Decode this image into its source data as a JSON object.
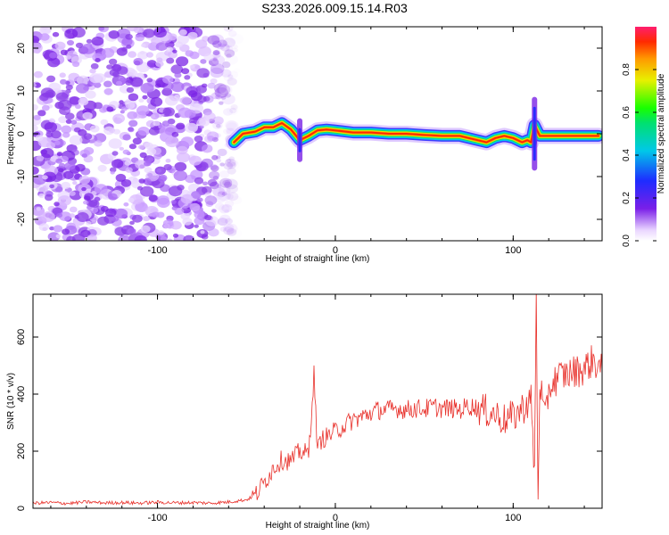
{
  "title": "S233.2026.009.15.14.R03",
  "chart_data": [
    {
      "type": "heatmap",
      "xlabel": "Height of straight line (km)",
      "ylabel": "Frequency (Hz)",
      "xlim": [
        -170,
        150
      ],
      "ylim": [
        -25,
        25
      ],
      "xticks": [
        -100,
        0,
        100
      ],
      "yticks": [
        -20,
        -10,
        0,
        10,
        20
      ],
      "noise_region_x": [
        -170,
        -55
      ],
      "signal_ridge": {
        "x": [
          -57,
          -52,
          -45,
          -40,
          -35,
          -30,
          -25,
          -20,
          -15,
          -10,
          -5,
          0,
          10,
          20,
          30,
          40,
          50,
          60,
          70,
          75,
          80,
          85,
          90,
          95,
          100,
          105,
          108,
          110,
          112,
          115,
          120,
          130,
          140,
          148
        ],
        "freq": [
          -2,
          0,
          0.5,
          1.5,
          1.5,
          2.5,
          1,
          -1.5,
          -0.5,
          0.8,
          1,
          0.8,
          0.3,
          0.3,
          0,
          0,
          -0.3,
          -0.5,
          -0.5,
          -1,
          -1.5,
          -2,
          -1,
          -0.5,
          -1,
          -2,
          -1.5,
          -2,
          2,
          -0.5,
          -0.5,
          -0.5,
          -0.5,
          -0.5
        ]
      },
      "colorbar": {
        "label": "Normalized spectral amplitude",
        "ticks": [
          "0.0",
          "0.2",
          "0.4",
          "0.6",
          "0.8"
        ],
        "range": [
          0,
          1
        ]
      }
    },
    {
      "type": "line",
      "xlabel": "Height of straight line (km)",
      "ylabel": "SNR (10 * v/v)",
      "xlim": [
        -170,
        150
      ],
      "ylim": [
        0,
        750
      ],
      "xticks": [
        -100,
        0,
        100
      ],
      "yticks": [
        0,
        200,
        400,
        600
      ],
      "color": "#e8302a",
      "series": [
        {
          "name": "SNR",
          "x": [
            -170,
            -160,
            -150,
            -140,
            -130,
            -120,
            -110,
            -100,
            -90,
            -80,
            -70,
            -60,
            -50,
            -45,
            -40,
            -35,
            -30,
            -25,
            -20,
            -15,
            -12,
            -10,
            -8,
            -5,
            0,
            5,
            10,
            15,
            20,
            25,
            30,
            35,
            40,
            45,
            50,
            55,
            60,
            65,
            70,
            75,
            80,
            85,
            90,
            95,
            100,
            105,
            110,
            112,
            113,
            114,
            115,
            118,
            120,
            125,
            130,
            135,
            140,
            145,
            150
          ],
          "y": [
            18,
            20,
            17,
            22,
            19,
            20,
            18,
            21,
            19,
            20,
            18,
            22,
            30,
            45,
            90,
            140,
            170,
            165,
            200,
            190,
            470,
            200,
            240,
            250,
            270,
            290,
            310,
            320,
            335,
            345,
            345,
            350,
            345,
            350,
            348,
            355,
            350,
            350,
            345,
            360,
            350,
            340,
            330,
            310,
            320,
            350,
            380,
            120,
            740,
            30,
            450,
            300,
            420,
            460,
            470,
            480,
            490,
            520,
            480
          ]
        }
      ]
    }
  ]
}
